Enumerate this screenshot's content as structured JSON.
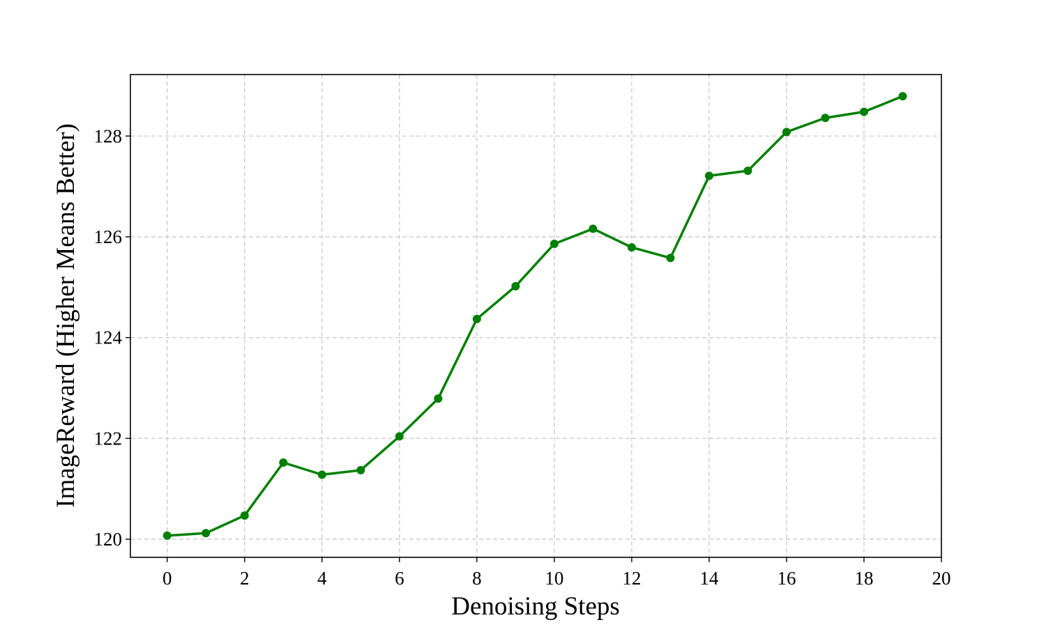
{
  "chart_data": {
    "type": "line",
    "xlabel": "Denoising Steps",
    "ylabel": "ImageReward (Higher Means Better)",
    "x": [
      0,
      1,
      2,
      3,
      4,
      5,
      6,
      7,
      8,
      9,
      10,
      11,
      12,
      13,
      14,
      15,
      16,
      17,
      18,
      19
    ],
    "series": [
      {
        "color": "#008000",
        "values": [
          120.07,
          120.12,
          120.47,
          121.52,
          121.28,
          121.37,
          122.04,
          122.79,
          124.37,
          125.02,
          125.86,
          126.16,
          125.79,
          125.58,
          127.21,
          127.31,
          128.08,
          128.36,
          128.48,
          128.79
        ]
      }
    ],
    "xlim": [
      -0.95,
      20
    ],
    "xticks": [
      0,
      2,
      4,
      6,
      8,
      10,
      12,
      14,
      16,
      18,
      20
    ],
    "ylim": [
      119.64,
      129.22
    ],
    "yticks": [
      120,
      122,
      124,
      126,
      128
    ],
    "grid": true
  }
}
